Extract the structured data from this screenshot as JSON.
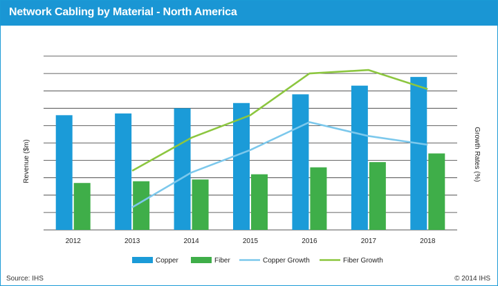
{
  "header": {
    "title": "Network Cabling by Material - North America"
  },
  "footer": {
    "source": "Source: IHS",
    "copyright": "© 2014 IHS"
  },
  "colors": {
    "copper": "#1b9bd8",
    "fiber": "#3fae49",
    "copper_growth": "#7cc8ec",
    "fiber_growth": "#8cc63f",
    "title_bg": "#1a96d4"
  },
  "chart_data": {
    "type": "bar",
    "title": "Network Cabling by Material - North America",
    "categories": [
      "2012",
      "2013",
      "2014",
      "2015",
      "2016",
      "2017",
      "2018"
    ],
    "ylabel": "Revenue ($m)",
    "y2label": "Growth Rates (%)",
    "ylim": [
      0,
      10
    ],
    "y2lim": [
      0,
      10
    ],
    "grid": true,
    "legend_position": "bottom",
    "series": [
      {
        "name": "Copper",
        "kind": "bar",
        "axis": "left",
        "values": [
          6.6,
          6.7,
          7.0,
          7.3,
          7.8,
          8.3,
          8.8
        ]
      },
      {
        "name": "Fiber",
        "kind": "bar",
        "axis": "left",
        "values": [
          2.7,
          2.8,
          2.9,
          3.2,
          3.6,
          3.9,
          4.4
        ]
      },
      {
        "name": "Copper Growth",
        "kind": "line",
        "axis": "right",
        "values": [
          null,
          1.3,
          3.3,
          4.6,
          6.2,
          5.4,
          4.9
        ]
      },
      {
        "name": "Fiber Growth",
        "kind": "line",
        "axis": "right",
        "values": [
          null,
          3.4,
          5.3,
          6.6,
          9.0,
          9.2,
          8.1
        ]
      }
    ]
  }
}
